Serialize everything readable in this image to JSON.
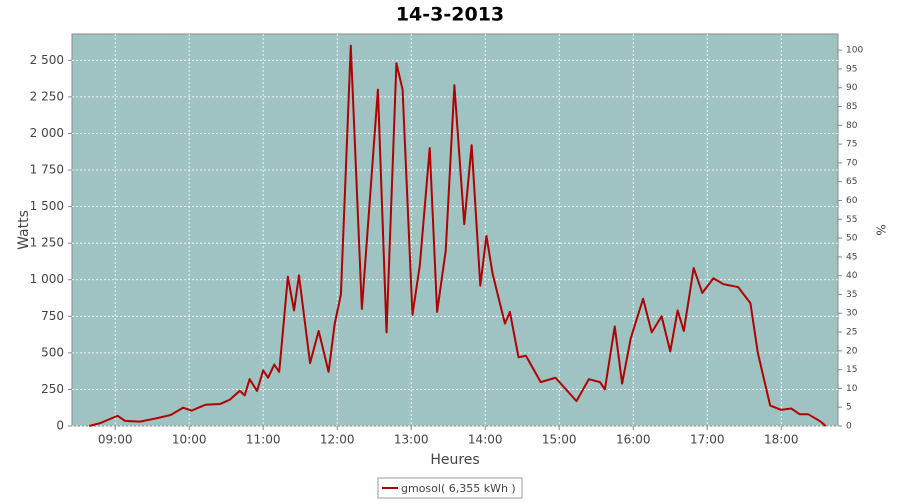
{
  "chart_data": {
    "type": "line",
    "title": "14-3-2013",
    "xlabel": "Heures",
    "ylabel": "Watts",
    "y2label": "%",
    "x": [
      "08:39",
      "08:48",
      "09:02",
      "09:08",
      "09:20",
      "09:32",
      "09:45",
      "09:55",
      "10:02",
      "10:13",
      "10:25",
      "10:33",
      "10:41",
      "10:45",
      "10:49",
      "10:55",
      "11:00",
      "11:04",
      "11:09",
      "11:13",
      "11:20",
      "11:25",
      "11:29",
      "11:38",
      "11:45",
      "11:53",
      "11:58",
      "12:03",
      "12:11",
      "12:20",
      "12:33",
      "12:40",
      "12:48",
      "12:53",
      "13:01",
      "13:07",
      "13:15",
      "13:21",
      "13:28",
      "13:35",
      "13:43",
      "13:49",
      "13:56",
      "14:01",
      "14:06",
      "14:16",
      "14:20",
      "14:27",
      "14:33",
      "14:45",
      "14:57",
      "15:14",
      "15:24",
      "15:33",
      "15:37",
      "15:45",
      "15:51",
      "15:58",
      "16:08",
      "16:15",
      "16:23",
      "16:30",
      "16:36",
      "16:41",
      "16:49",
      "16:56",
      "17:05",
      "17:13",
      "17:25",
      "17:35",
      "17:41",
      "17:51",
      "18:00",
      "18:08",
      "18:15",
      "18:22",
      "18:32",
      "18:36"
    ],
    "series": [
      {
        "name": "gmosol( 6,355 kWh )",
        "color": "#b00000",
        "values": [
          0,
          20,
          70,
          35,
          30,
          50,
          75,
          125,
          105,
          145,
          150,
          180,
          240,
          210,
          320,
          240,
          380,
          330,
          420,
          370,
          1020,
          790,
          1030,
          430,
          650,
          370,
          700,
          900,
          2600,
          800,
          2300,
          640,
          2480,
          2300,
          760,
          1100,
          1900,
          780,
          1200,
          2330,
          1380,
          1920,
          960,
          1300,
          1040,
          700,
          780,
          470,
          480,
          300,
          330,
          170,
          320,
          300,
          250,
          680,
          290,
          600,
          870,
          640,
          750,
          510,
          790,
          650,
          1080,
          910,
          1010,
          970,
          950,
          840,
          500,
          140,
          110,
          120,
          80,
          80,
          30,
          0
        ]
      }
    ],
    "xlim": [
      "08:25",
      "18:46"
    ],
    "xticks": [
      "09:00",
      "10:00",
      "11:00",
      "12:00",
      "13:00",
      "14:00",
      "15:00",
      "16:00",
      "17:00",
      "18:00"
    ],
    "ylim": [
      0,
      2680
    ],
    "yticks": [
      0,
      250,
      500,
      750,
      {
        "value": 1000,
        "label": "1 000"
      },
      {
        "value": 1250,
        "label": "1 250"
      },
      {
        "value": 1500,
        "label": "1 500"
      },
      {
        "value": 1750,
        "label": "1 750"
      },
      {
        "value": 2000,
        "label": "2 000"
      },
      {
        "value": 2250,
        "label": "2 250"
      },
      {
        "value": 2500,
        "label": "2 500"
      }
    ],
    "y2lim": [
      0,
      104.3
    ],
    "y2ticks": [
      0,
      5,
      10,
      15,
      20,
      25,
      30,
      35,
      40,
      45,
      50,
      55,
      60,
      65,
      70,
      75,
      80,
      85,
      90,
      95,
      100
    ],
    "grid": true,
    "legend": "bottom"
  }
}
